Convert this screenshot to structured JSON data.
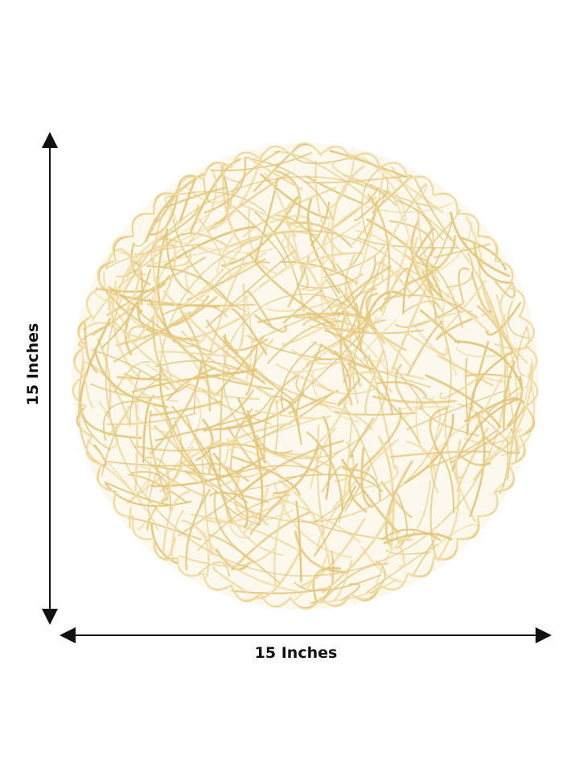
{
  "dimensions": {
    "height_label": "15 Inches",
    "width_label": "15 Inches"
  },
  "product": {
    "name": "woven-paper-placemat",
    "shape": "round",
    "color": "#e8d290"
  },
  "colors": {
    "background": "#ffffff",
    "arrow": "#111111",
    "fiber": "#e3c87f",
    "fiber_light": "#f0dca6"
  }
}
